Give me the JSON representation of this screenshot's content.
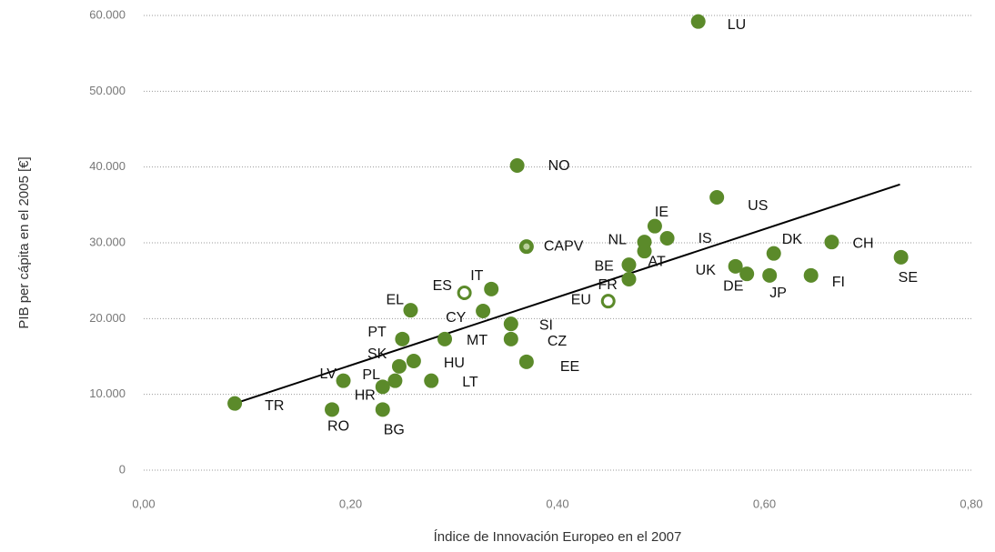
{
  "chart_data": {
    "type": "scatter",
    "xlabel": "Índice de Innovación Europeo en el 2007",
    "ylabel": "PIB per cápita en el 2005 [€]",
    "xlim": [
      0,
      0.8
    ],
    "xticks": [
      {
        "value": 0,
        "label": "0,00"
      },
      {
        "value": 0.2,
        "label": "0,20"
      },
      {
        "value": 0.4,
        "label": "0,40"
      },
      {
        "value": 0.6,
        "label": "0,60"
      },
      {
        "value": 0.8,
        "label": "0,80"
      }
    ],
    "ylim": [
      0,
      60000
    ],
    "yticks": [
      0,
      {
        "value": 10000,
        "label": "10.000"
      },
      {
        "value": 20000,
        "label": "20.000"
      },
      {
        "value": 30000,
        "label": "30.000"
      },
      {
        "value": 40000,
        "label": "40.000"
      },
      {
        "value": 50000,
        "label": "50.000"
      },
      {
        "value": 60000,
        "label": "60.000"
      }
    ],
    "grid": true,
    "color": "#5b8a2a",
    "labels": [
      "LU",
      "NO",
      "US",
      "CAPV",
      "IE",
      "NL",
      "IS",
      "AT",
      "BE",
      "FR",
      "EU",
      "DK",
      "CH",
      "SE",
      "UK",
      "DE",
      "JP",
      "FI",
      "ES",
      "IT",
      "EL",
      "CY",
      "SI",
      "CZ",
      "MT",
      "PT",
      "SK",
      "HU",
      "LT",
      "EE",
      "LV",
      "PL",
      "HR",
      "RO",
      "BG",
      "TR"
    ],
    "x": [
      0.536,
      0.361,
      0.554,
      0.37,
      0.494,
      0.484,
      0.506,
      0.484,
      0.469,
      0.469,
      0.449,
      0.609,
      0.665,
      0.732,
      0.572,
      0.583,
      0.605,
      0.645,
      0.31,
      0.336,
      0.258,
      0.328,
      0.355,
      0.355,
      0.291,
      0.25,
      0.247,
      0.261,
      0.278,
      0.37,
      0.193,
      0.243,
      0.231,
      0.182,
      0.231,
      0.088
    ],
    "y": [
      59200,
      40200,
      36000,
      29500,
      32200,
      30100,
      30600,
      28900,
      27100,
      25200,
      22300,
      28600,
      30100,
      28100,
      26900,
      25900,
      25700,
      25700,
      23400,
      23900,
      21100,
      21000,
      19300,
      17300,
      17300,
      17300,
      13700,
      14400,
      11800,
      14300,
      11800,
      11800,
      11000,
      8000,
      8000,
      8800
    ],
    "markers": [
      "solid",
      "solid",
      "solid",
      "dot",
      "solid",
      "solid",
      "solid",
      "solid",
      "solid",
      "solid",
      "ring",
      "solid",
      "solid",
      "solid",
      "solid",
      "solid",
      "solid",
      "solid",
      "ring",
      "solid",
      "solid",
      "solid",
      "solid",
      "solid",
      "solid",
      "solid",
      "solid",
      "solid",
      "solid",
      "solid",
      "solid",
      "solid",
      "solid",
      "solid",
      "solid",
      "solid"
    ],
    "highlight_label": "US",
    "highlight_color": "#6a9a34",
    "trendline": {
      "x": [
        0.088,
        0.731
      ],
      "y": [
        8800,
        37700
      ],
      "color": "#000000"
    }
  }
}
